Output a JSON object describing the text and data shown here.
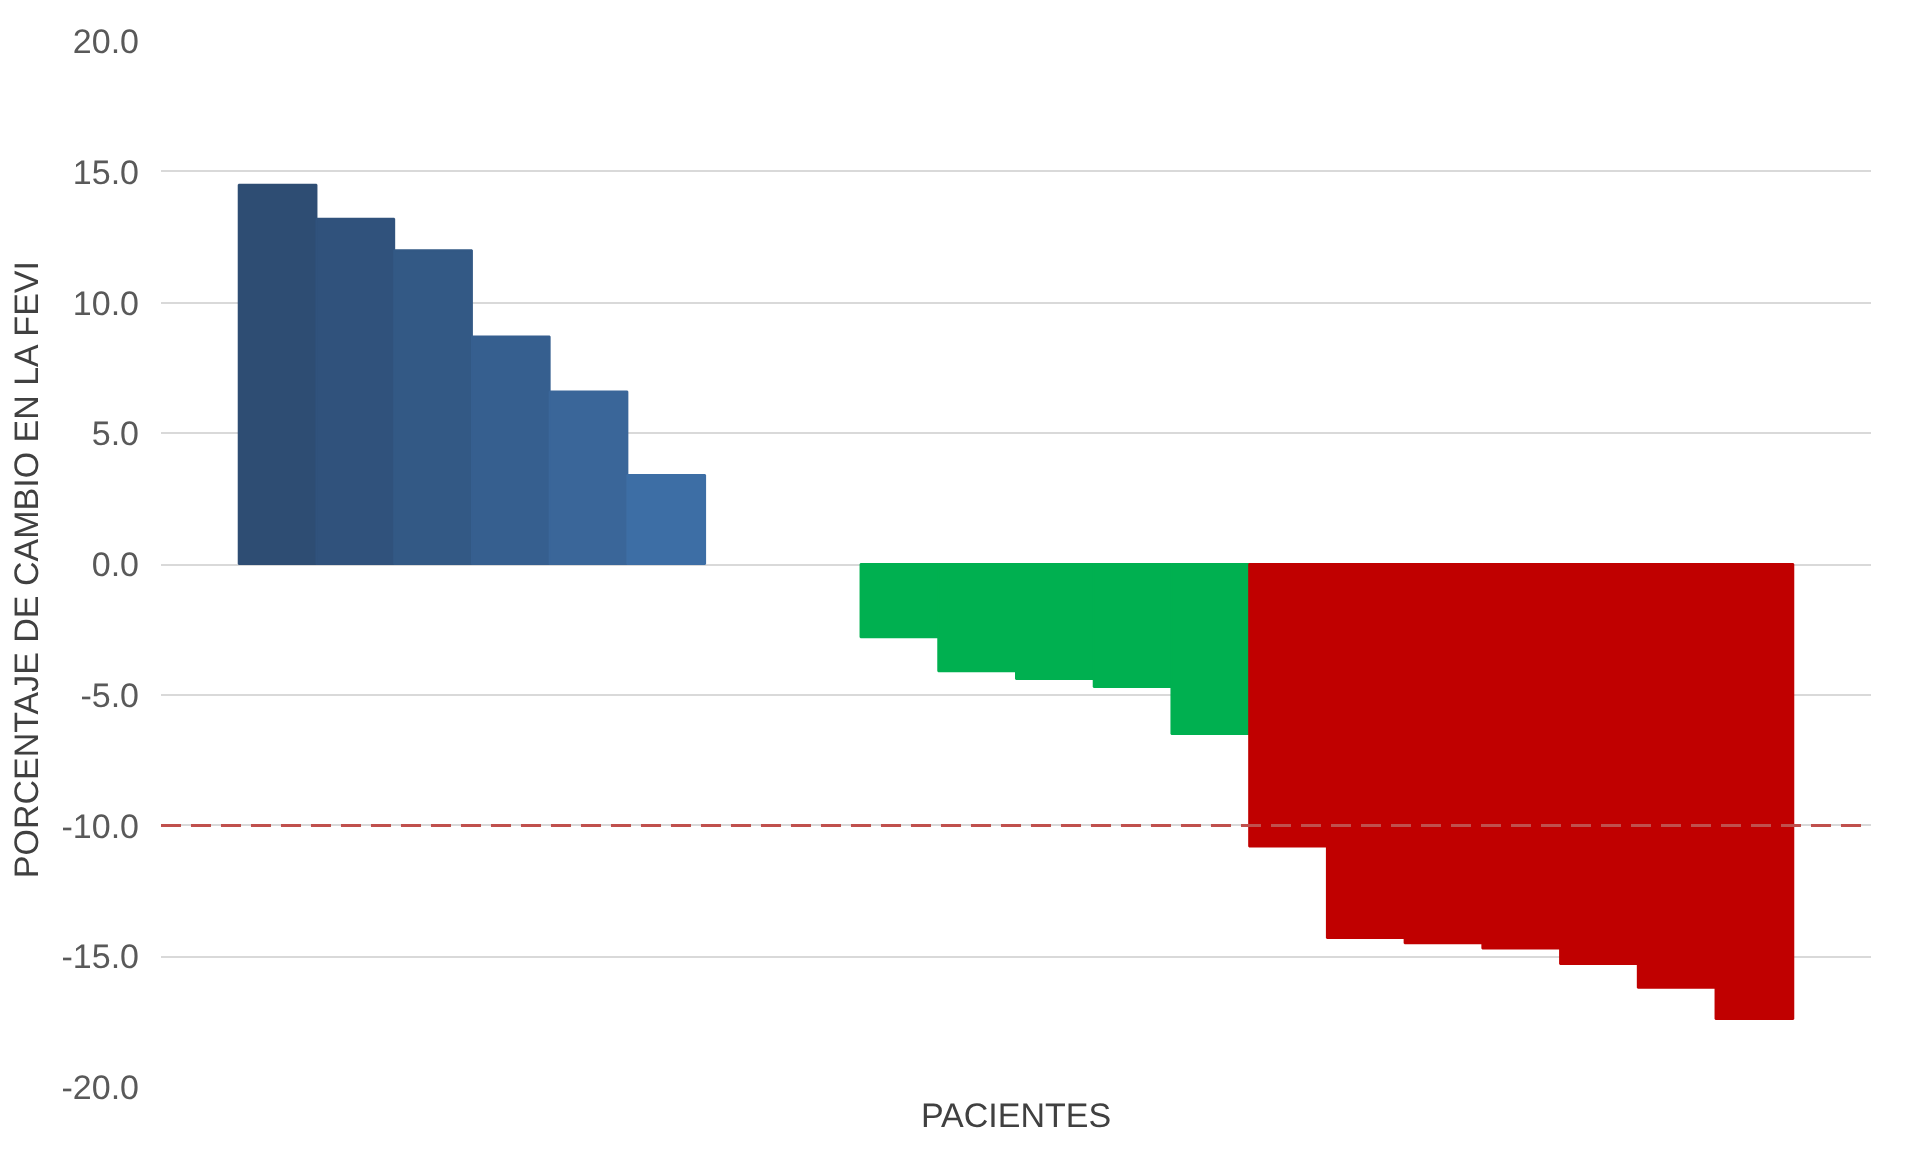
{
  "chart_data": {
    "type": "bar",
    "xlabel": "PACIENTES",
    "ylabel": "PORCENTAJE  DE CAMBIO EN LA FEVI",
    "categories": [
      null,
      null,
      null,
      null,
      null,
      null,
      null,
      null,
      null,
      null,
      null,
      null,
      null,
      null,
      null,
      null,
      null,
      null,
      null,
      null,
      null,
      null
    ],
    "values": [
      null,
      14.5,
      13.2,
      12.0,
      8.7,
      6.6,
      3.4,
      null,
      null,
      -2.8,
      -4.1,
      -4.4,
      -4.7,
      -6.5,
      -10.8,
      -14.3,
      -14.5,
      -14.7,
      -15.3,
      -16.2,
      -17.4,
      null
    ],
    "colors": [
      "#2e4d73",
      "#2e4d73",
      "#30527c",
      "#335985",
      "#365f8f",
      "#3a6699",
      "#3d6ea5",
      "#3d6ea5",
      "#00b050",
      "#00b050",
      "#00b050",
      "#00b050",
      "#00b050",
      "#00b050",
      "#c00000",
      "#c00000",
      "#c00000",
      "#c00000",
      "#c00000",
      "#c00000",
      "#c00000",
      "#c00000"
    ],
    "ylim": [
      -20,
      20
    ],
    "yticks": [
      {
        "value": -20,
        "label": "-20.0"
      },
      {
        "value": -15,
        "label": "-15.0"
      },
      {
        "value": -10,
        "label": "-10.0"
      },
      {
        "value": -5,
        "label": "-5.0"
      },
      {
        "value": 0,
        "label": "0.0"
      },
      {
        "value": 5,
        "label": "5.0"
      },
      {
        "value": 10,
        "label": "10.0"
      },
      {
        "value": 15,
        "label": "15.0"
      },
      {
        "value": 20,
        "label": "20.0"
      }
    ],
    "grid": "y",
    "ref_lines": [
      {
        "axis": "y",
        "value": -10,
        "color": "#c0504d",
        "line_style": "dashed"
      }
    ]
  }
}
